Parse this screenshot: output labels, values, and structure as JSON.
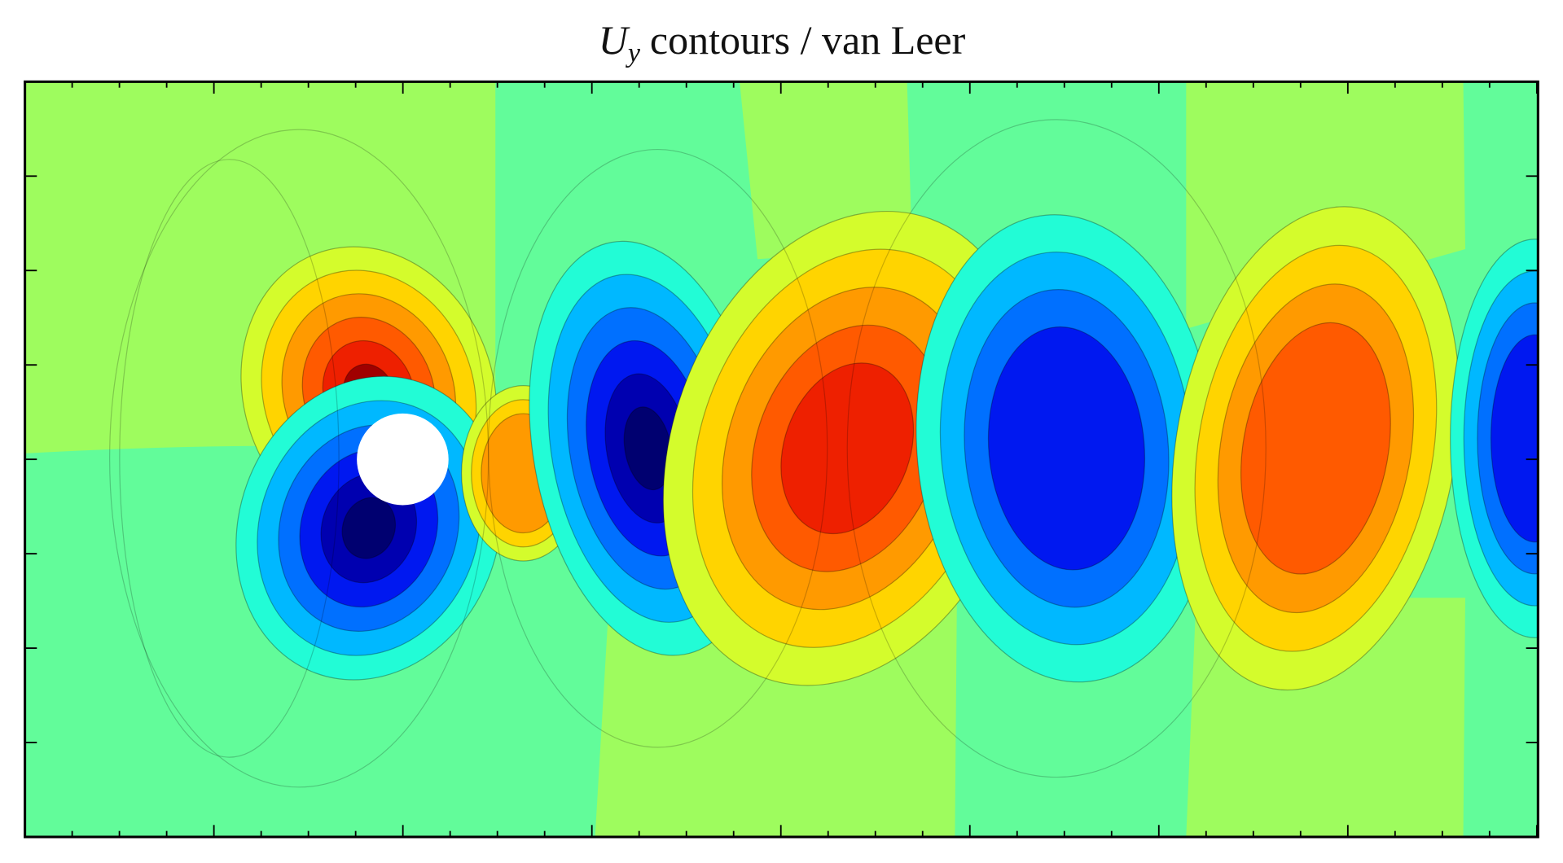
{
  "chart_data": {
    "type": "contour",
    "title": {
      "symbol": "U",
      "subscript": "y",
      "text": "contours / van Leer"
    }
  }
}
